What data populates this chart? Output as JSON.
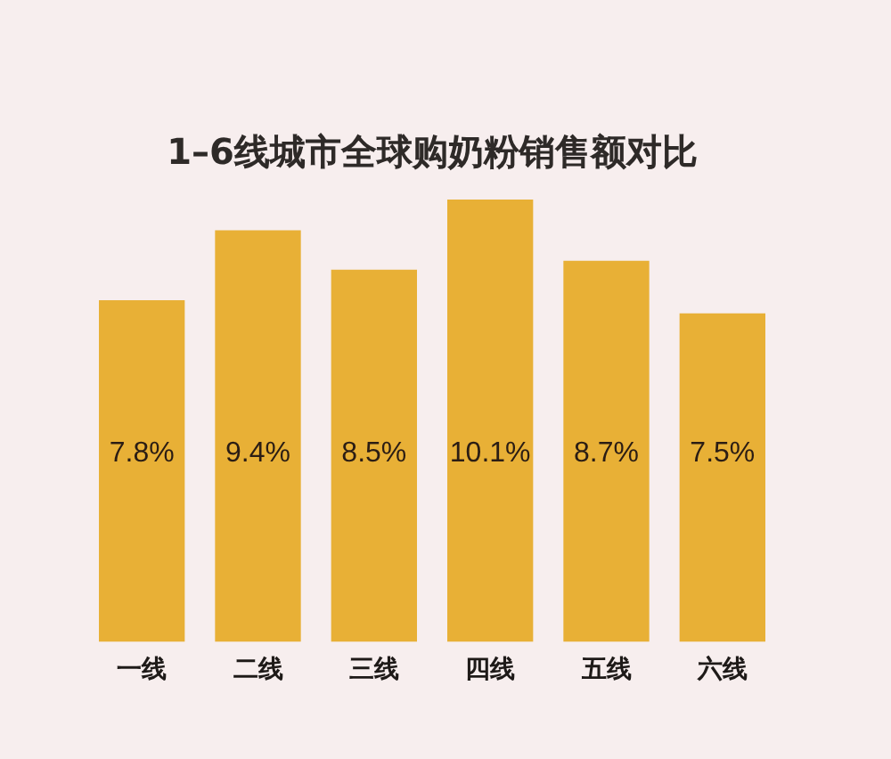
{
  "chart_data": {
    "type": "bar",
    "title": "1–6线城市全球购奶粉销售额对比",
    "categories": [
      "一线",
      "二线",
      "三线",
      "四线",
      "五线",
      "六线"
    ],
    "values": [
      7.8,
      9.4,
      8.5,
      10.1,
      8.7,
      7.5
    ],
    "color": "#e8b036",
    "value_labels": [
      "7.8%",
      "9.4%",
      "8.5%",
      "10.1%",
      "8.7%",
      "7.5%"
    ]
  }
}
